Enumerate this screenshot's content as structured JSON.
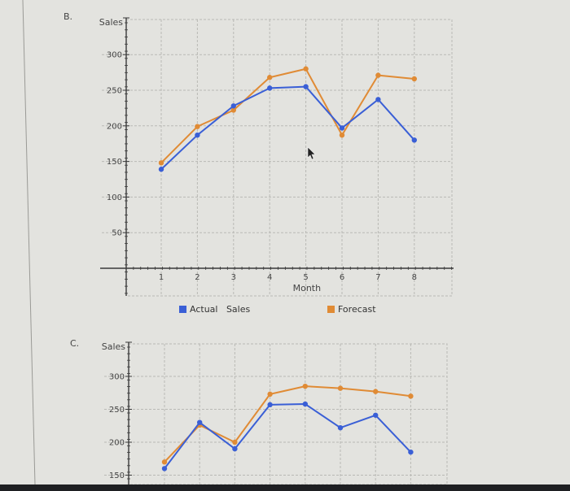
{
  "colors": {
    "actual": "#3a5fd6",
    "forecast": "#e08b35",
    "grid": "#b9b9b5",
    "axis": "#3a3a3a",
    "background": "#e3e3df"
  },
  "charts": {
    "b": {
      "label": "B.",
      "ylabel": "Sales",
      "xlabel": "Month",
      "yticks": [
        "300",
        "250",
        "200",
        "150",
        "100",
        "50"
      ],
      "xticks": [
        "1",
        "2",
        "3",
        "4",
        "5",
        "6",
        "7",
        "8"
      ],
      "legend": {
        "actual": "Actual   Sales",
        "forecast": "Forecast"
      }
    },
    "c": {
      "label": "C.",
      "ylabel": "Sales",
      "yticks": [
        "300",
        "250",
        "200",
        "150"
      ]
    }
  },
  "chart_data": [
    {
      "type": "line",
      "title": "B.",
      "xlabel": "Month",
      "ylabel": "Sales",
      "x": [
        1,
        2,
        3,
        4,
        5,
        6,
        7,
        8
      ],
      "series": [
        {
          "name": "Actual Sales",
          "color": "#3a5fd6",
          "values": [
            139,
            187,
            228,
            253,
            255,
            197,
            237,
            180
          ]
        },
        {
          "name": "Forecast",
          "color": "#e08b35",
          "values": [
            148,
            199,
            222,
            268,
            280,
            187,
            271,
            266
          ]
        }
      ],
      "ylim": [
        0,
        350
      ],
      "xlim": [
        0,
        9
      ],
      "yticks": [
        50,
        100,
        150,
        200,
        250,
        300
      ],
      "grid": true,
      "legend_position": "bottom"
    },
    {
      "type": "line",
      "title": "C.",
      "xlabel": "",
      "ylabel": "Sales",
      "x": [
        1,
        2,
        3,
        4,
        5,
        6,
        7,
        8
      ],
      "series": [
        {
          "name": "Actual Sales",
          "color": "#3a5fd6",
          "values": [
            160,
            230,
            190,
            257,
            258,
            222,
            241,
            185
          ]
        },
        {
          "name": "Forecast",
          "color": "#e08b35",
          "values": [
            170,
            226,
            200,
            273,
            285,
            282,
            277,
            270
          ]
        }
      ],
      "ylim": [
        140,
        350
      ],
      "yticks": [
        150,
        200,
        250,
        300
      ],
      "grid": true
    }
  ]
}
